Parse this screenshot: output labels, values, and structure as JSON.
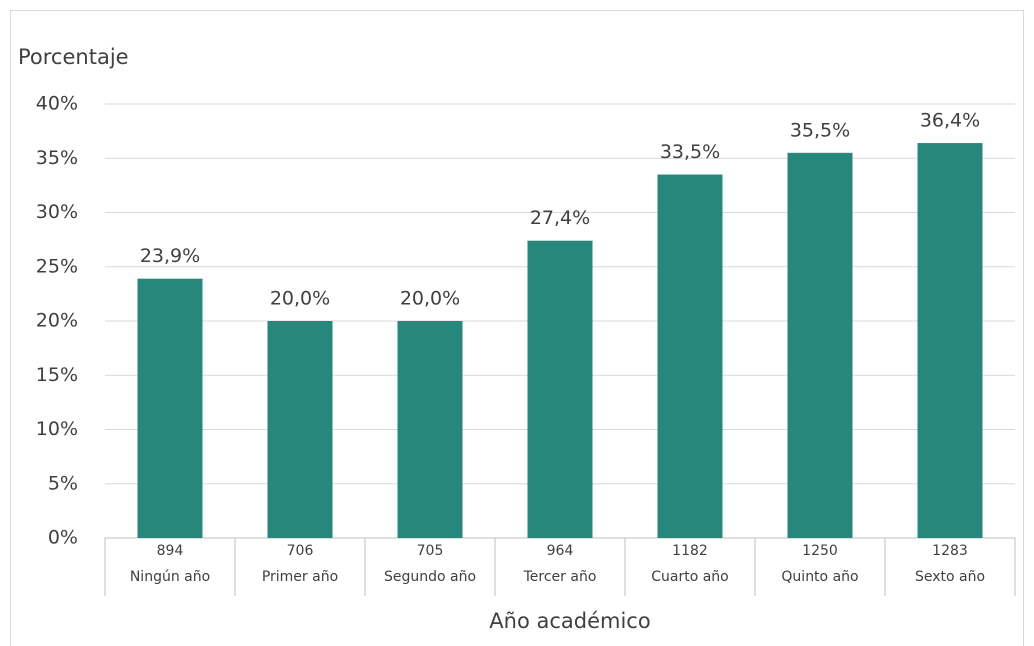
{
  "chart_data": {
    "type": "bar",
    "y_axis_label": "Porcentaje",
    "x_axis_label": "Año académico",
    "categories": [
      "Ningún año",
      "Primer año",
      "Segundo año",
      "Tercer año",
      "Cuarto año",
      "Quinto año",
      "Sexto año"
    ],
    "category_counts": [
      894,
      706,
      705,
      964,
      1182,
      1250,
      1283
    ],
    "values": [
      23.9,
      20.0,
      20.0,
      27.4,
      33.5,
      35.5,
      36.4
    ],
    "value_labels": [
      "23,9%",
      "20,0%",
      "20,0%",
      "27,4%",
      "33,5%",
      "35,5%",
      "36,4%"
    ],
    "color": "#27877b",
    "ylim": [
      0,
      40
    ],
    "yticks": [
      {
        "value": 0,
        "label": "0%"
      },
      {
        "value": 5,
        "label": "5%"
      },
      {
        "value": 10,
        "label": "10%"
      },
      {
        "value": 15,
        "label": "15%"
      },
      {
        "value": 20,
        "label": "20%"
      },
      {
        "value": 25,
        "label": "25%"
      },
      {
        "value": 30,
        "label": "30%"
      },
      {
        "value": 35,
        "label": "35%"
      },
      {
        "value": 40,
        "label": "40%"
      }
    ],
    "grid": true
  }
}
